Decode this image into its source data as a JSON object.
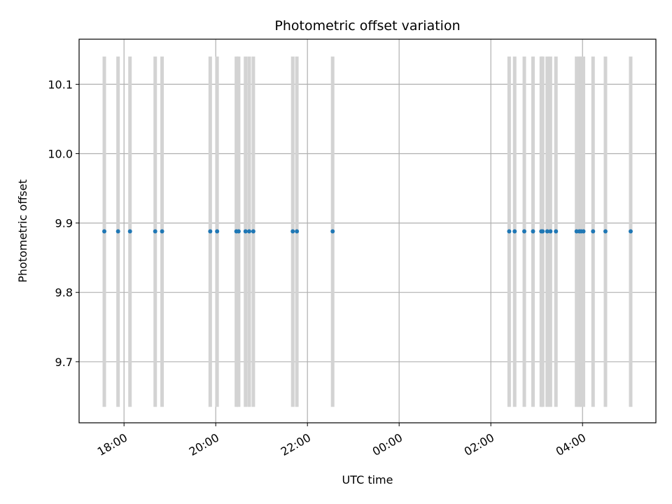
{
  "chart_data": {
    "type": "scatter",
    "title": "Photometric offset variation",
    "xlabel": "UTC time",
    "ylabel": "Photometric offset",
    "x_unit": "hours of night, ticks labeled HH:MM UTC",
    "xlim": [
      17.02,
      29.6
    ],
    "ylim": [
      9.612,
      10.165
    ],
    "y_ticks": [
      {
        "value": 9.7,
        "label": "9.7"
      },
      {
        "value": 9.8,
        "label": "9.8"
      },
      {
        "value": 9.9,
        "label": "9.9"
      },
      {
        "value": 10.0,
        "label": "10.0"
      },
      {
        "value": 10.1,
        "label": "10.1"
      }
    ],
    "x_ticks": [
      {
        "value": 18,
        "label": "18:00"
      },
      {
        "value": 20,
        "label": "20:00"
      },
      {
        "value": 22,
        "label": "22:00"
      },
      {
        "value": 24,
        "label": "00:00"
      },
      {
        "value": 26,
        "label": "02:00"
      },
      {
        "value": 28,
        "label": "04:00"
      }
    ],
    "grid": true,
    "band_range": [
      9.635,
      10.14
    ],
    "band_color": "#d3d3d3",
    "point_color": "#1f77b4",
    "x": [
      17.57,
      17.87,
      18.13,
      18.68,
      18.83,
      19.88,
      20.03,
      20.45,
      20.5,
      20.65,
      20.73,
      20.82,
      21.68,
      21.77,
      22.55,
      26.4,
      26.52,
      26.73,
      26.92,
      27.1,
      27.13,
      27.23,
      27.3,
      27.42,
      27.87,
      27.93,
      27.97,
      28.02,
      28.23,
      28.5,
      29.05
    ],
    "y": [
      9.888,
      9.888,
      9.888,
      9.888,
      9.888,
      9.888,
      9.888,
      9.888,
      9.888,
      9.888,
      9.888,
      9.888,
      9.888,
      9.888,
      9.888,
      9.888,
      9.888,
      9.888,
      9.888,
      9.888,
      9.888,
      9.888,
      9.888,
      9.888,
      9.888,
      9.888,
      9.888,
      9.888,
      9.888,
      9.888,
      9.888
    ]
  }
}
